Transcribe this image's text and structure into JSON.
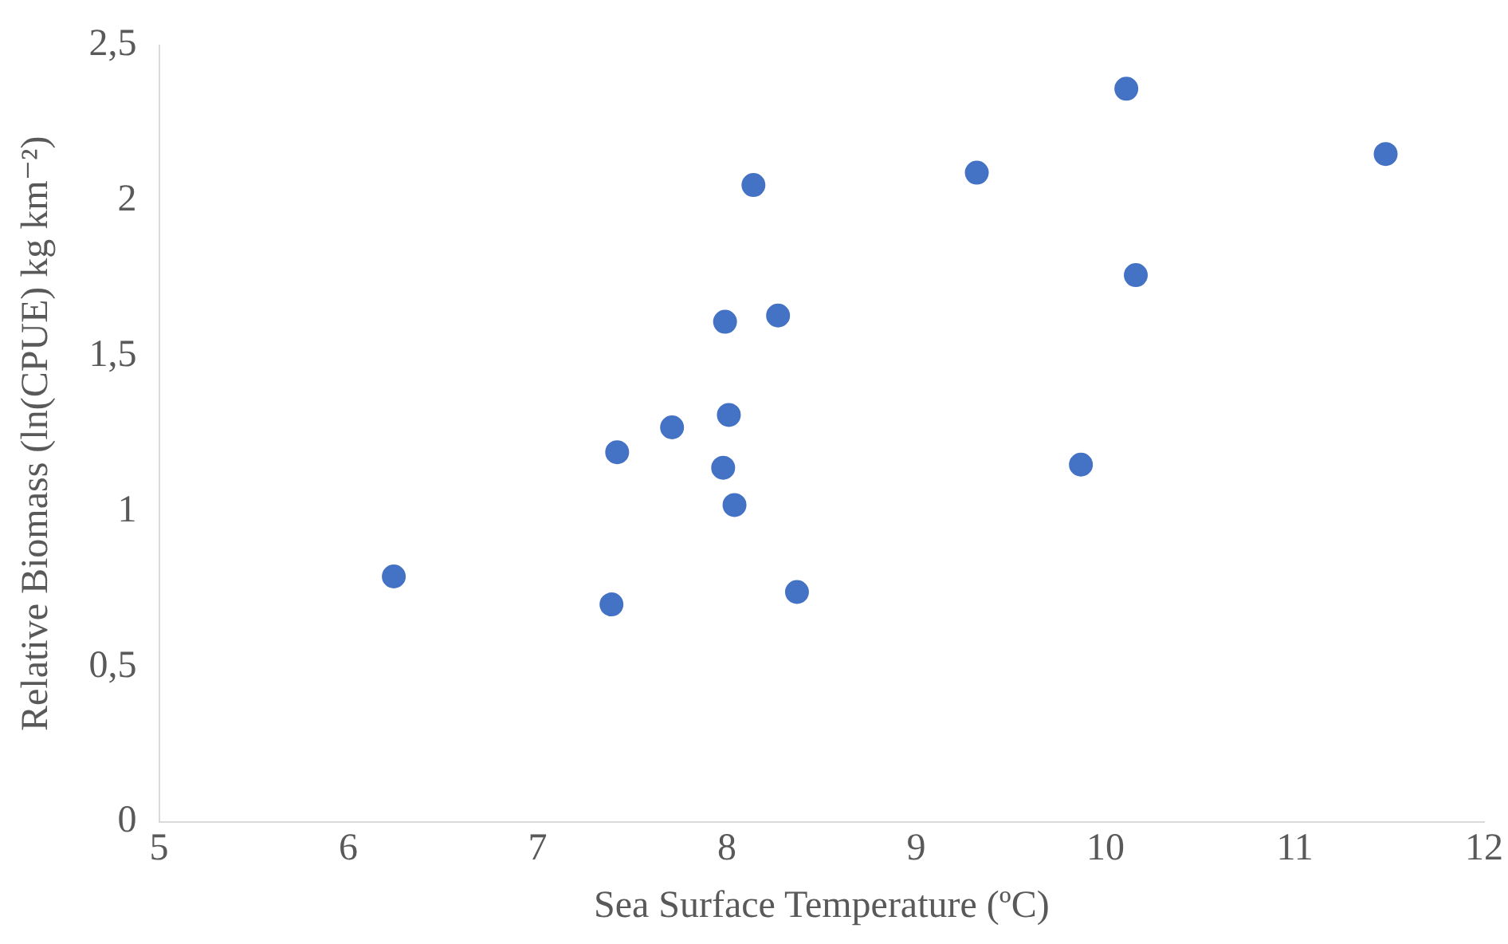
{
  "chart_data": {
    "type": "scatter",
    "xlabel": "Sea Surface Temperature (ºC)",
    "ylabel": "Relative Biomass (ln(CPUE) kg km⁻²)",
    "x": [
      6.24,
      7.39,
      7.42,
      7.71,
      7.99,
      8.01,
      7.98,
      8.04,
      8.14,
      8.27,
      8.37,
      9.32,
      9.87,
      10.11,
      10.16,
      11.48
    ],
    "values": [
      0.79,
      0.7,
      1.19,
      1.27,
      1.61,
      1.31,
      1.14,
      1.02,
      2.05,
      1.63,
      0.74,
      2.09,
      1.15,
      2.36,
      1.76,
      2.15
    ],
    "color": "#4472c4",
    "marker": "circle",
    "xlim": [
      5,
      12
    ],
    "xticks": [
      5,
      6,
      7,
      8,
      9,
      10,
      11,
      12
    ],
    "ylim": [
      0,
      2.5
    ],
    "yticks": [
      0,
      {
        "value": 0.5,
        "label": "0,5"
      },
      1,
      {
        "value": 1.5,
        "label": "1,5"
      },
      2,
      {
        "value": 2.5,
        "label": "2,5"
      }
    ],
    "grid": false,
    "legend": false
  }
}
